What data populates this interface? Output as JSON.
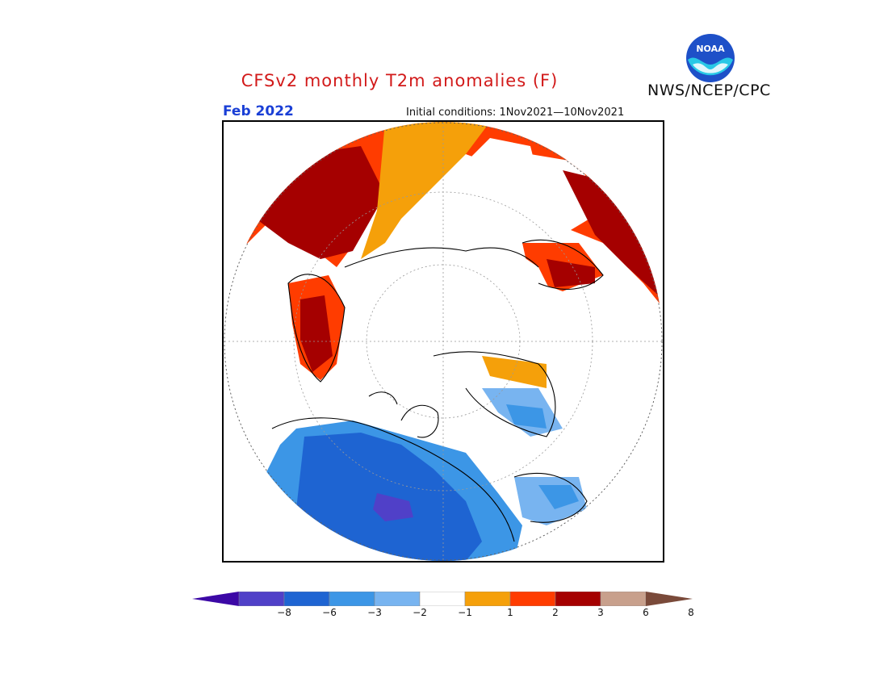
{
  "title": "CFSv2 monthly T2m anomalies (F)",
  "valid_month": "Feb 2022",
  "initial_conditions": "Initial conditions: 1Nov2021—10Nov2021",
  "agency": "NWS/NCEP/CPC",
  "logo": {
    "icon": "noaa-logo",
    "text": "NOAA"
  },
  "colorbar": {
    "colors": [
      "#3c08a6",
      "#5040c8",
      "#1e64d2",
      "#3c96e6",
      "#78b4f0",
      "#ffffff",
      "#f5a00a",
      "#ff3c00",
      "#a50000",
      "#c8a08c",
      "#7a4a3a"
    ],
    "tick_labels": [
      "-8",
      "-6",
      "-3",
      "-2",
      "-1",
      "1",
      "2",
      "3",
      "6",
      "8"
    ]
  },
  "colors": {
    "title": "#d21a1a",
    "month": "#1a3fd6",
    "coast": "#000000"
  }
}
